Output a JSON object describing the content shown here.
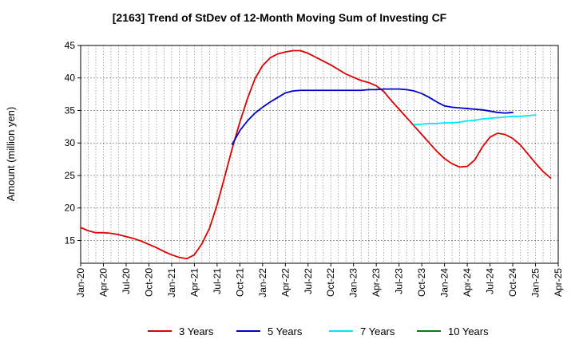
{
  "chart_data": {
    "type": "line",
    "title": "[2163]  Trend of StDev of 12-Month Moving Sum of Investing CF",
    "xlabel": "",
    "ylabel": "Amount (million yen)",
    "ylim": [
      11.5,
      45
    ],
    "yticks": [
      15,
      20,
      25,
      30,
      35,
      40,
      45
    ],
    "xticks": [
      "Jan-20",
      "Apr-20",
      "Jul-20",
      "Oct-20",
      "Jan-21",
      "Apr-21",
      "Jul-21",
      "Oct-21",
      "Jan-22",
      "Apr-22",
      "Jul-22",
      "Oct-22",
      "Jan-23",
      "Apr-23",
      "Jul-23",
      "Oct-23",
      "Jan-24",
      "Apr-24",
      "Jul-24",
      "Oct-24",
      "Jan-25",
      "Apr-25"
    ],
    "grid": true,
    "legend_position": "bottom",
    "x_start": "Jan-20",
    "series": [
      {
        "name": "3 Years",
        "color": "#e00000",
        "start": "Jan-20",
        "values": [
          17.0,
          16.5,
          16.2,
          16.2,
          16.1,
          15.9,
          15.6,
          15.3,
          14.9,
          14.4,
          13.9,
          13.3,
          12.8,
          12.4,
          12.2,
          12.8,
          14.5,
          16.9,
          20.5,
          24.8,
          29.2,
          33.2,
          36.8,
          39.9,
          41.9,
          43.1,
          43.7,
          44.0,
          44.2,
          44.2,
          43.8,
          43.2,
          42.6,
          42.0,
          41.3,
          40.6,
          40.1,
          39.6,
          39.3,
          38.8,
          37.9,
          36.5,
          35.2,
          33.9,
          32.6,
          31.3,
          30.0,
          28.7,
          27.6,
          26.8,
          26.3,
          26.4,
          27.4,
          29.4,
          30.9,
          31.5,
          31.3,
          30.7,
          29.7,
          28.3,
          26.9,
          25.6,
          24.6
        ]
      },
      {
        "name": "5 Years",
        "color": "#0000cc",
        "start": "Sep-21",
        "values": [
          29.8,
          31.9,
          33.4,
          34.6,
          35.5,
          36.3,
          37.0,
          37.7,
          38.0,
          38.1,
          38.1,
          38.1,
          38.1,
          38.1,
          38.1,
          38.1,
          38.1,
          38.1,
          38.2,
          38.2,
          38.3,
          38.3,
          38.3,
          38.2,
          38.0,
          37.6,
          37.0,
          36.3,
          35.7,
          35.5,
          35.4,
          35.3,
          35.2,
          35.1,
          34.9,
          34.7,
          34.6,
          34.7
        ]
      },
      {
        "name": "7 Years",
        "color": "#00e5ff",
        "start": "Sep-23",
        "values": [
          32.8,
          32.9,
          33.0,
          33.0,
          33.1,
          33.1,
          33.2,
          33.4,
          33.5,
          33.7,
          33.8,
          33.9,
          34.0,
          34.1,
          34.1,
          34.2,
          34.3
        ]
      },
      {
        "name": "10 Years",
        "color": "#008000",
        "start": "Jan-25",
        "values": []
      }
    ]
  }
}
